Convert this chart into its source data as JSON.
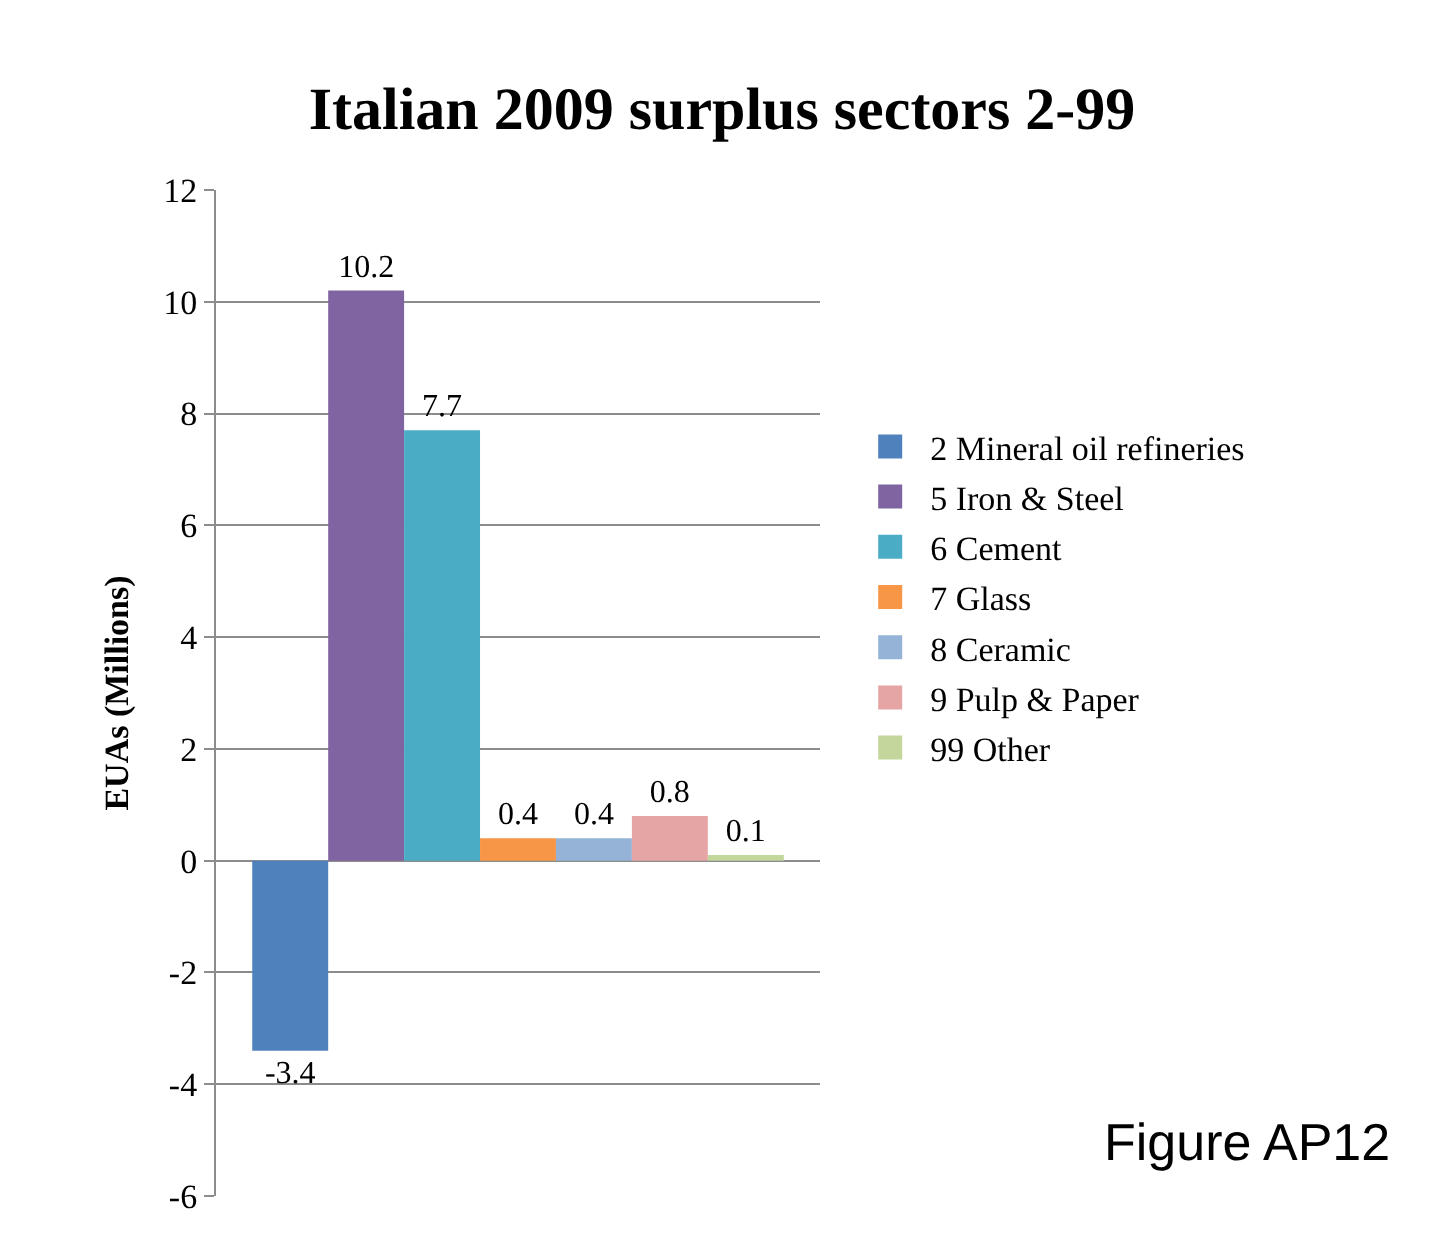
{
  "chart_data": {
    "type": "bar",
    "title": "Italian 2009 surplus sectors 2-99",
    "ylabel": "EUAs (Millions)",
    "categories": [
      null
    ],
    "series": [
      {
        "name": "2 Mineral oil refineries",
        "color": "#4f81bd",
        "values": [
          -3.4
        ]
      },
      {
        "name": "5 Iron & Steel",
        "color": "#8064a2",
        "values": [
          10.2
        ]
      },
      {
        "name": "6 Cement",
        "color": "#4bacc6",
        "values": [
          7.7
        ]
      },
      {
        "name": "7 Glass",
        "color": "#f79646",
        "values": [
          0.4
        ]
      },
      {
        "name": "8 Ceramic",
        "color": "#95b3d7",
        "values": [
          0.4
        ]
      },
      {
        "name": "9 Pulp & Paper",
        "color": "#e6a5a5",
        "values": [
          0.8
        ]
      },
      {
        "name": "99 Other",
        "color": "#c3d69b",
        "values": [
          0.1
        ]
      }
    ],
    "ylim": [
      -6,
      12
    ],
    "yticks": [
      -6,
      -4,
      -2,
      0,
      2,
      4,
      6,
      8,
      10,
      12
    ],
    "grid": "y",
    "legend": "right",
    "data_labels": true,
    "tick_labels": "y",
    "annotations": [
      "Figure AP12"
    ]
  }
}
